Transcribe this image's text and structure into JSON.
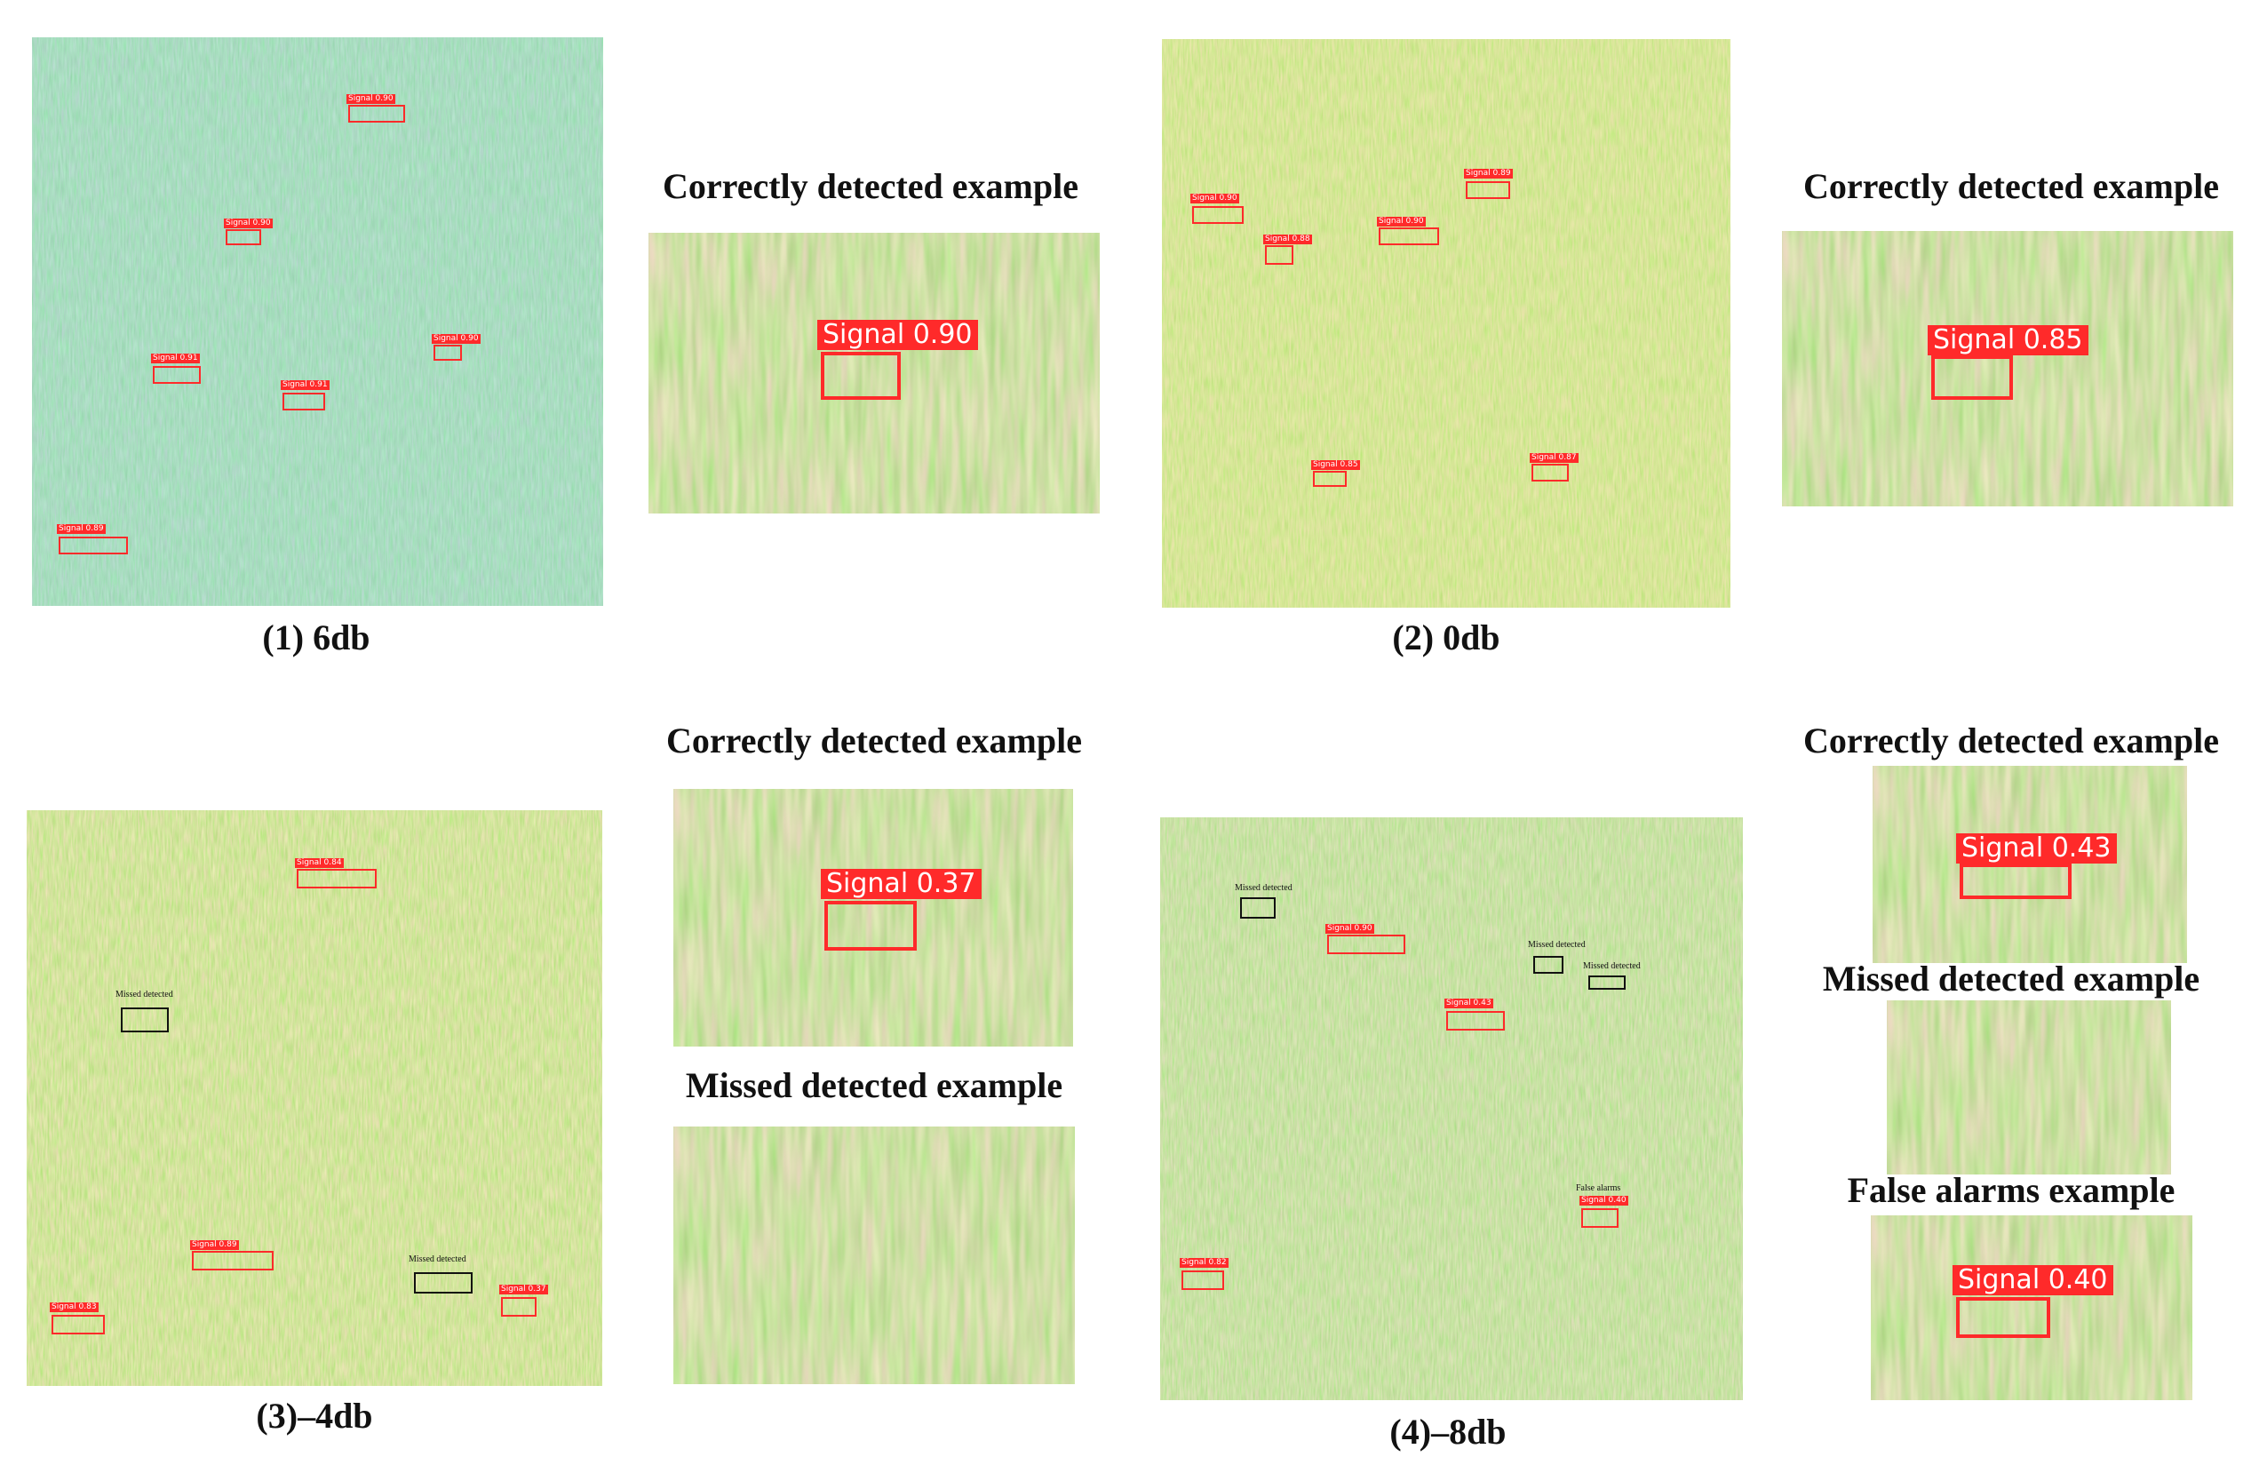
{
  "captions": {
    "p1": "(1) 6db",
    "p2": "(2) 0db",
    "p3": "(3)–4db",
    "p4": "(4)–8db"
  },
  "headings": {
    "p1_correct": "Correctly detected example",
    "p2_correct": "Correctly detected example",
    "p3_correct": "Correctly detected example",
    "p3_missed": "Missed detected example",
    "p4_correct": "Correctly detected example",
    "p4_missed": "Missed detected example",
    "p4_false": "False alarms example"
  },
  "detections": {
    "p1": [
      "Signal 0.90",
      "Signal 0.90",
      "Signal 0.91",
      "Signal 0.90",
      "Signal 0.91",
      "Signal 0.89"
    ],
    "p2": [
      "Signal 0.90",
      "Signal 0.89",
      "Signal 0.88",
      "Signal 0.90",
      "Signal 0.85",
      "Signal 0.87"
    ],
    "p3": [
      "Signal 0.84",
      "Signal 0.89",
      "Signal 0.83",
      "Signal 0.37"
    ],
    "p4": [
      "Signal 0.90",
      "Signal 0.43",
      "Signal 0.40",
      "Signal 0.82"
    ]
  },
  "missed_labels": {
    "p3": [
      "Missed detected",
      "Missed detected"
    ],
    "p4": [
      "Missed detected",
      "Missed detected",
      "Missed detected"
    ]
  },
  "false_alarm_label": "False alarms",
  "zoom_labels": {
    "p1": "Signal 0.90",
    "p2": "Signal 0.85",
    "p3": "Signal 0.37",
    "p4_correct": "Signal 0.43",
    "p4_false": "Signal 0.40"
  },
  "colors": {
    "box_detected": "#ff2a2a",
    "box_missed": "#111111",
    "noise_low": "#2e9e72",
    "noise_high": "#c8e04a"
  }
}
